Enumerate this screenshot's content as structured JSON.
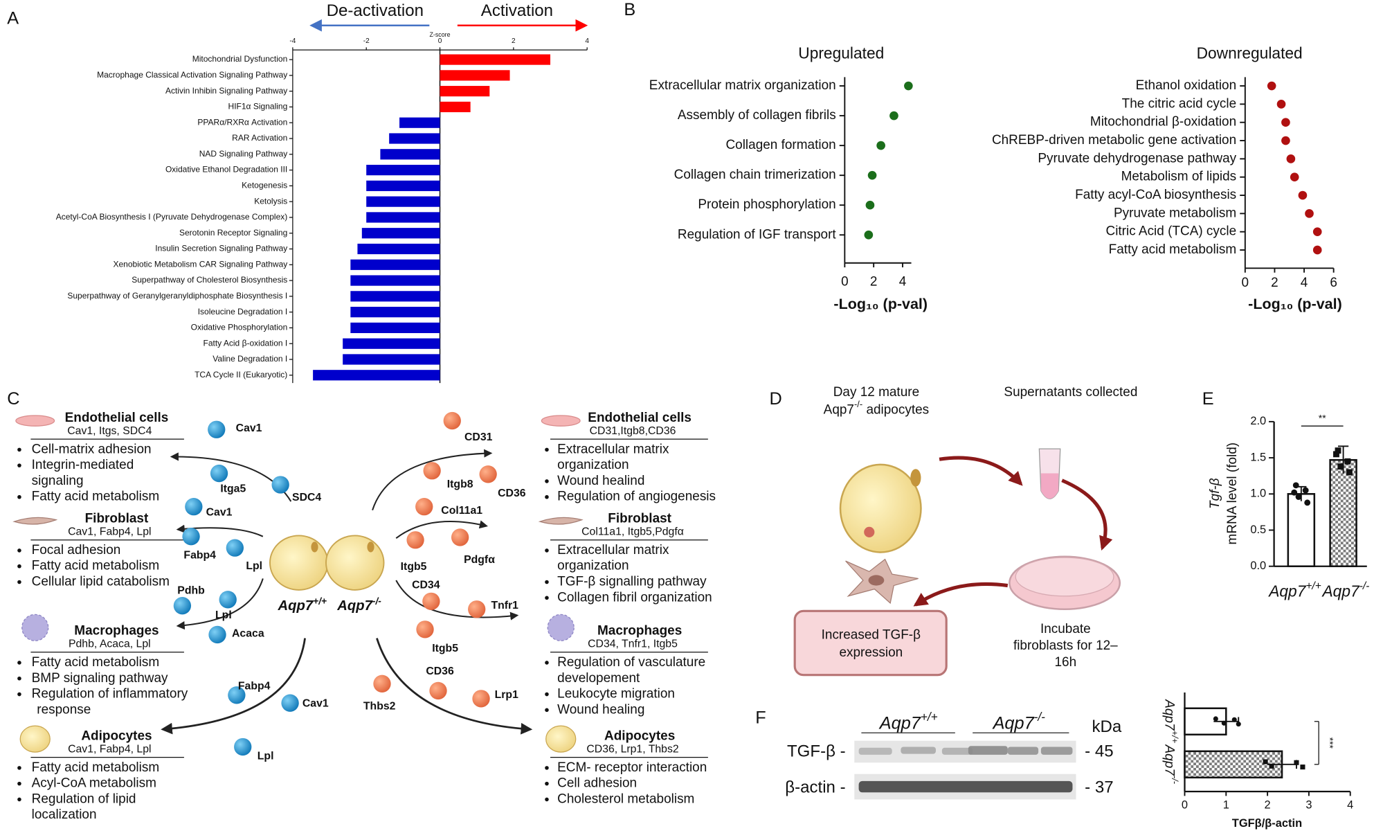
{
  "panel_labels": [
    "A",
    "B",
    "C",
    "D",
    "E",
    "F"
  ],
  "chart_data": [
    {
      "type": "bar",
      "orientation": "horizontal",
      "xlabel": "Z-score",
      "annotations": [
        "De-activation",
        "Activation"
      ],
      "annotation_colors": [
        "#4472c4",
        "#ff0000"
      ],
      "xlim": [
        -4,
        4
      ],
      "xticks": [
        -4,
        -2,
        0,
        2,
        4
      ],
      "categories": [
        "Mitochondrial Dysfunction",
        "Macrophage Classical Activation Signaling Pathway",
        "Activin Inhibin Signaling Pathway",
        "HIF1α Signaling",
        "PPARα/RXRα Activation",
        "RAR Activation",
        "NAD Signaling Pathway",
        "Oxidative Ethanol Degradation III",
        "Ketogenesis",
        "Ketolysis",
        "Acetyl-CoA Biosynthesis I (Pyruvate Dehydrogenase Complex)",
        "Serotonin Receptor Signaling",
        "Insulin Secretion Signaling Pathway",
        "Xenobiotic Metabolism CAR Signaling Pathway",
        "Superpathway of Cholesterol Biosynthesis",
        "Superpathway of Geranylgeranyldiphosphate Biosynthesis I",
        "Isoleucine Degradation I",
        "Oxidative Phosphorylation",
        "Fatty Acid β-oxidation I",
        "Valine Degradation I",
        "TCA Cycle II (Eukaryotic)"
      ],
      "values": [
        3.0,
        1.9,
        1.35,
        0.83,
        -1.1,
        -1.38,
        -1.62,
        -2.0,
        -2.0,
        -2.0,
        -2.0,
        -2.12,
        -2.24,
        -2.43,
        -2.43,
        -2.43,
        -2.43,
        -2.43,
        -2.64,
        -2.64,
        -3.45
      ],
      "colors": {
        "positive": "#ff0000",
        "negative": "#0000cc"
      }
    },
    {
      "type": "dot",
      "title": "Upregulated",
      "xlabel": "-Log₁₀ (p-val)",
      "xlim": [
        0,
        4.6
      ],
      "xticks": [
        0,
        2,
        4
      ],
      "categories": [
        "Extracellular matrix organization",
        "Assembly of collagen fibrils",
        "Collagen formation",
        "Collagen chain trimerization",
        "Protein phosphorylation",
        "Regulation  of IGF transport"
      ],
      "values": [
        4.4,
        3.4,
        2.5,
        1.9,
        1.75,
        1.65
      ],
      "color": "#1b6e1b"
    },
    {
      "type": "dot",
      "title": "Downregulated",
      "xlabel": "-Log₁₀ (p-val)",
      "xlim": [
        0,
        6
      ],
      "xticks": [
        0,
        2,
        4,
        6
      ],
      "categories": [
        "Ethanol oxidation",
        "The citric acid cycle",
        "Mitochondrial β-oxidation",
        "ChREBP-driven metabolic gene activation",
        "Pyruvate dehydrogenase pathway",
        "Metabolism of lipids",
        "Fatty acyl-CoA biosynthesis",
        "Pyruvate metabolism",
        "Citric Acid (TCA) cycle",
        "Fatty acid metabolism"
      ],
      "values": [
        1.8,
        2.45,
        2.75,
        2.75,
        3.1,
        3.35,
        3.9,
        4.35,
        4.9,
        4.9
      ],
      "color": "#b01010"
    },
    {
      "type": "bar",
      "orientation": "vertical",
      "ylabel": [
        "Tgf-β",
        "mRNA level (fold)"
      ],
      "annotation": "**",
      "ylim": [
        0,
        2
      ],
      "yticks": [
        {
          "value": 0,
          "label": "0.0"
        },
        0.5,
        {
          "value": 1,
          "label": "1.0"
        },
        1.5,
        {
          "value": 2,
          "label": "2.0"
        }
      ],
      "categories": [
        {
          "base": "Aqp7",
          "sup": "+/+"
        },
        {
          "base": "Aqp7",
          "sup": "-/-"
        }
      ],
      "values": [
        1.0,
        1.47
      ],
      "errors": [
        0.1,
        0.19
      ],
      "points": [
        [
          1.12,
          1.05,
          0.96,
          0.88,
          1.02
        ],
        [
          1.6,
          1.45,
          1.38,
          1.3,
          1.55
        ]
      ],
      "colors": [
        "#ffffff",
        "#7a7a7a"
      ]
    },
    {
      "type": "bar",
      "orientation": "horizontal",
      "xlabel": "TGFβ/β-actin",
      "annotation": "***",
      "xlim": [
        0,
        4
      ],
      "xticks": [
        0,
        1,
        2,
        3,
        4
      ],
      "categories": [
        {
          "base": "Aqp7",
          "sup": "+/+"
        },
        {
          "base": "Aqp7",
          "sup": "-/-"
        }
      ],
      "values": [
        1.0,
        2.35
      ],
      "errors": [
        0.3,
        0.35
      ],
      "points": [
        [
          0.75,
          0.95,
          1.2,
          1.3
        ],
        [
          1.95,
          2.1,
          2.7,
          2.85
        ]
      ],
      "colors": [
        "#ffffff",
        "#7a7a7a"
      ]
    }
  ],
  "diagram_c": {
    "left_groups": [
      {
        "title": "Endothelial cells",
        "genes": "Cav1, Itgs, SDC4",
        "bullets": [
          [
            "Cell-matrix adhesion"
          ],
          [
            "Integrin-mediated",
            "signaling"
          ],
          [
            "Fatty acid metabolism"
          ]
        ]
      },
      {
        "title": "Fibroblast",
        "genes": "Cav1, Fabp4, Lpl",
        "bullets": [
          [
            "Focal adhesion"
          ],
          [
            "Fatty acid metabolism"
          ],
          [
            "Cellular lipid catabolism"
          ]
        ]
      },
      {
        "title": "Macrophages",
        "genes": "Pdhb, Acaca, Lpl",
        "bullets": [
          [
            "Fatty acid metabolism"
          ],
          [
            "BMP signaling pathway"
          ],
          [
            "Regulation of inflammatory",
            "response"
          ]
        ]
      },
      {
        "title": "Adipocytes",
        "genes": "Cav1, Fabp4, Lpl",
        "bullets": [
          [
            "Fatty acid metabolism"
          ],
          [
            "Acyl-CoA metabolism"
          ],
          [
            "Regulation of lipid",
            "localization"
          ]
        ]
      }
    ],
    "right_groups": [
      {
        "title": "Endothelial cells",
        "genes": "CD31,Itgb8,CD36",
        "bullets": [
          [
            "Extracellular matrix",
            "organization"
          ],
          [
            "Wound healind"
          ],
          [
            "Regulation of angiogenesis"
          ]
        ]
      },
      {
        "title": "Fibroblast",
        "genes": "Col11a1, Itgb5,Pdgfα",
        "bullets": [
          [
            "Extracellular matrix",
            "organization"
          ],
          [
            "TGF-β signalling pathway"
          ],
          [
            "Collagen fibril organization"
          ]
        ]
      },
      {
        "title": "Macrophages",
        "genes": "CD34, Tnfr1, Itgb5",
        "bullets": [
          [
            "Regulation of vasculature",
            "developement"
          ],
          [
            "Leukocyte migration"
          ],
          [
            "Wound healing"
          ]
        ]
      },
      {
        "title": "Adipocytes",
        "genes": "CD36, Lrp1, Thbs2",
        "bullets": [
          [
            "ECM- receptor interaction"
          ],
          [
            "Cell adhesion"
          ],
          [
            "Cholesterol metabolism"
          ]
        ]
      }
    ],
    "genes_left": [
      "Cav1",
      "Itga5",
      "SDC4",
      "Cav1",
      "Fabp4",
      "Lpl",
      "Pdhb",
      "Lpl",
      "Acaca",
      "Fabp4",
      "Cav1",
      "Lpl"
    ],
    "genes_right": [
      "CD31",
      "Itgb8",
      "CD36",
      "Col11a1",
      "Pdgfα",
      "Itgb5",
      "CD34",
      "Tnfr1",
      "Itgb5",
      "CD36",
      "Thbs2",
      "Lrp1"
    ],
    "cells": [
      {
        "base": "Aqp7",
        "sup": "+/+"
      },
      {
        "base": "Aqp7",
        "sup": "-/-"
      }
    ]
  },
  "diagram_d": {
    "start": [
      "Day 12 mature",
      {
        "base": "Aqp7",
        "sup": "-/-",
        "rest": " adipocytes"
      }
    ],
    "collect": "Supernatants collected",
    "incubate": [
      "Incubate",
      "fibroblasts for 12–",
      "16h"
    ],
    "result": [
      "Increased TGF-β",
      "expression"
    ]
  },
  "blot_f": {
    "groups": [
      {
        "base": "Aqp7",
        "sup": "+/+"
      },
      {
        "base": "Aqp7",
        "sup": "-/-"
      }
    ],
    "unit": "kDa",
    "rows": [
      {
        "label": "TGF-β -",
        "size": "- 45"
      },
      {
        "label": "β-actin -",
        "size": "- 37"
      }
    ]
  }
}
